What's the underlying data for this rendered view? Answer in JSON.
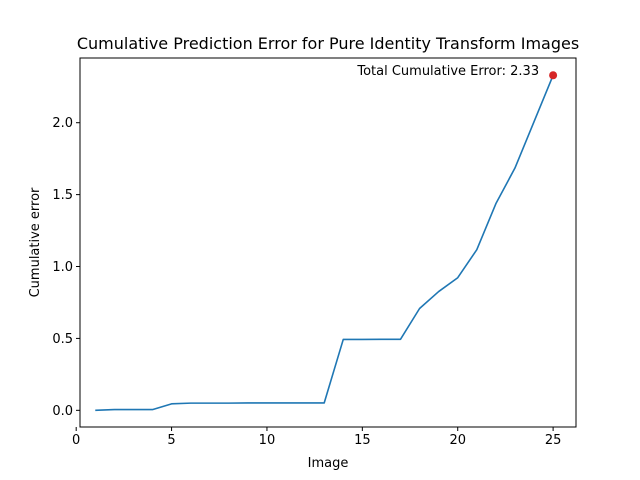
{
  "chart_data": {
    "type": "line",
    "title": "Cumulative Prediction Error for Pure Identity Transform Images",
    "xlabel": "Image",
    "ylabel": "Cumulative error",
    "xlim": [
      0.2,
      26.2
    ],
    "ylim": [
      -0.116,
      2.45
    ],
    "xticks": [
      0,
      5,
      10,
      15,
      20,
      25
    ],
    "xtick_labels": [
      "0",
      "5",
      "10",
      "15",
      "20",
      "25"
    ],
    "yticks": [
      0.0,
      0.5,
      1.0,
      1.5,
      2.0
    ],
    "ytick_labels": [
      "0.0",
      "0.5",
      "1.0",
      "1.5",
      "2.0"
    ],
    "grid": false,
    "series": [
      {
        "color": "#1f77b4",
        "x": [
          1,
          2,
          3,
          4,
          5,
          6,
          7,
          8,
          9,
          10,
          11,
          12,
          13,
          14,
          15,
          16,
          17,
          18,
          19,
          20,
          21,
          22,
          23,
          24,
          25
        ],
        "y": [
          0.0,
          0.005,
          0.005,
          0.005,
          0.045,
          0.05,
          0.05,
          0.05,
          0.051,
          0.051,
          0.051,
          0.051,
          0.051,
          0.493,
          0.493,
          0.494,
          0.494,
          0.708,
          0.826,
          0.922,
          1.117,
          1.437,
          1.685,
          2.007,
          2.33
        ]
      }
    ],
    "highlight_point": {
      "x": 25,
      "y": 2.33,
      "color": "#d62728"
    },
    "annotation": {
      "text": "Total Cumulative Error: 2.33",
      "x": 25,
      "y": 2.33
    }
  }
}
